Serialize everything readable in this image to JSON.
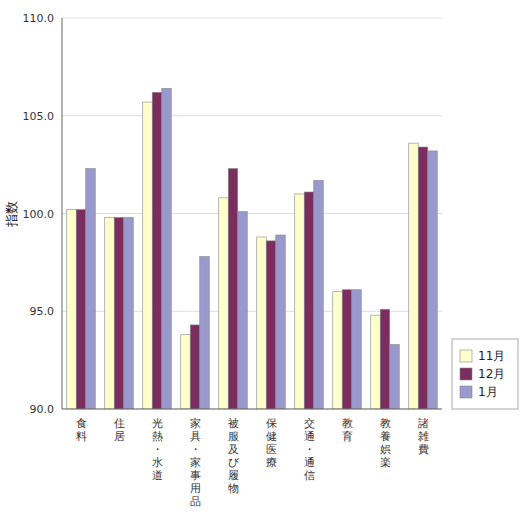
{
  "chart_data": {
    "type": "bar",
    "categories": [
      "食料",
      "住居",
      "光熱・水道",
      "家具・家事用品",
      "被服及び履物",
      "保健医療",
      "交通・通信",
      "教育",
      "教養娯楽",
      "諸雑費"
    ],
    "series": [
      {
        "name": "11月",
        "color": "#FFFFCC",
        "values": [
          100.2,
          99.8,
          105.7,
          93.8,
          100.8,
          98.8,
          101.0,
          96.0,
          94.8,
          103.6
        ]
      },
      {
        "name": "12月",
        "color": "#7B2D5E",
        "values": [
          100.2,
          99.8,
          106.2,
          94.3,
          102.3,
          98.6,
          101.1,
          96.1,
          95.1,
          103.4
        ]
      },
      {
        "name": "1月",
        "color": "#9999CC",
        "values": [
          102.3,
          99.8,
          106.4,
          97.8,
          100.1,
          98.9,
          101.7,
          96.1,
          93.3,
          103.2
        ]
      }
    ],
    "ylabel": "指数",
    "ylim": [
      90.0,
      110.0
    ],
    "yticks": [
      {
        "value": 90.0,
        "label": "90.0"
      },
      {
        "value": 95.0,
        "label": "95.0"
      },
      {
        "value": 100.0,
        "label": "100.0"
      },
      {
        "value": 105.0,
        "label": "105.0"
      },
      {
        "value": 110.0,
        "label": "110.0"
      }
    ],
    "grid": true,
    "legend": "lower right"
  }
}
